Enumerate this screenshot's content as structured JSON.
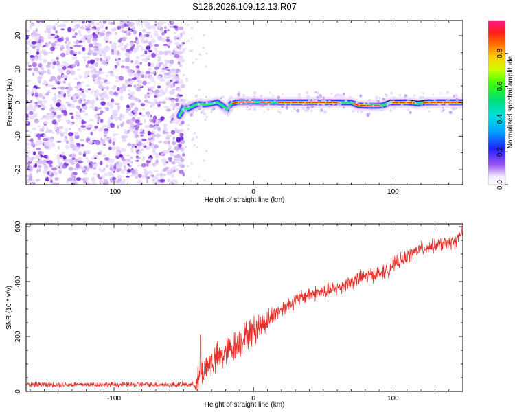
{
  "title": "S126.2026.109.12.13.R07",
  "colors": {
    "snr_line": "#e8302a",
    "scatter_purple": "#7a1fd6",
    "axis": "#000000"
  },
  "chart_data": [
    {
      "type": "heatmap",
      "name": "spectrogram",
      "xlabel": "Height of straight line (km)",
      "ylabel": "Frequency (Hz)",
      "xlim": [
        -163,
        150
      ],
      "ylim": [
        -24.5,
        24.5
      ],
      "xticks": [
        -100,
        0,
        100
      ],
      "xtick_labels": [
        "-100",
        "0",
        "100"
      ],
      "yticks": [
        -20,
        -10,
        0,
        10,
        20
      ],
      "ytick_labels": [
        "-20",
        "-10",
        "0",
        "10",
        "20"
      ],
      "colorbar": {
        "label": "Normalized spectral amplitude",
        "range": [
          0,
          1
        ],
        "ticks": [
          0.0,
          0.2,
          0.4,
          0.6,
          0.8
        ],
        "tick_labels": [
          "0.0",
          "0.2",
          "0.4",
          "0.6",
          "0.8"
        ]
      },
      "noise_region_x": [
        -163,
        -53
      ],
      "signal_start_x": -53,
      "signal_track": [
        {
          "x": -53,
          "f": -4.0
        },
        {
          "x": -50,
          "f": -1.5
        },
        {
          "x": -47,
          "f": -1.8
        },
        {
          "x": -44,
          "f": -1.2
        },
        {
          "x": -40,
          "f": -0.4
        },
        {
          "x": -35,
          "f": -0.6
        },
        {
          "x": -30,
          "f": -0.3
        },
        {
          "x": -26,
          "f": 0.1
        },
        {
          "x": -22,
          "f": -1.0
        },
        {
          "x": -19,
          "f": -2.0
        },
        {
          "x": -16,
          "f": -0.3
        },
        {
          "x": -10,
          "f": 0.2
        },
        {
          "x": 0,
          "f": 0.2
        },
        {
          "x": 20,
          "f": 0.1
        },
        {
          "x": 50,
          "f": 0.1
        },
        {
          "x": 70,
          "f": 0.0
        },
        {
          "x": 75,
          "f": -0.8
        },
        {
          "x": 85,
          "f": -1.0
        },
        {
          "x": 92,
          "f": -0.9
        },
        {
          "x": 98,
          "f": 0.0
        },
        {
          "x": 110,
          "f": 0.1
        },
        {
          "x": 118,
          "f": -0.3
        },
        {
          "x": 125,
          "f": 0.1
        },
        {
          "x": 150,
          "f": 0.1
        }
      ],
      "strong_segments": [
        [
          -15,
          0
        ],
        [
          5,
          12
        ],
        [
          18,
          60
        ],
        [
          72,
          90
        ],
        [
          100,
          115
        ],
        [
          122,
          150
        ]
      ]
    },
    {
      "type": "line",
      "name": "snr",
      "xlabel": "Height of straight line (km)",
      "ylabel": "SNR (10 * v/v)",
      "xlim": [
        -163,
        150
      ],
      "ylim": [
        0,
        610
      ],
      "xticks": [
        -100,
        0,
        100
      ],
      "xtick_labels": [
        "-100",
        "0",
        "100"
      ],
      "yticks": [
        0,
        200,
        400,
        600
      ],
      "ytick_labels": [
        "0",
        "200",
        "400",
        "600"
      ],
      "trend": [
        {
          "x": -163,
          "y": 25
        },
        {
          "x": -42,
          "y": 25
        },
        {
          "x": -40,
          "y": 30
        },
        {
          "x": -35,
          "y": 90
        },
        {
          "x": -20,
          "y": 140
        },
        {
          "x": -10,
          "y": 180
        },
        {
          "x": 0,
          "y": 220
        },
        {
          "x": 10,
          "y": 260
        },
        {
          "x": 20,
          "y": 300
        },
        {
          "x": 30,
          "y": 330
        },
        {
          "x": 40,
          "y": 355
        },
        {
          "x": 50,
          "y": 360
        },
        {
          "x": 60,
          "y": 375
        },
        {
          "x": 70,
          "y": 400
        },
        {
          "x": 80,
          "y": 420
        },
        {
          "x": 95,
          "y": 435
        },
        {
          "x": 100,
          "y": 460
        },
        {
          "x": 110,
          "y": 490
        },
        {
          "x": 120,
          "y": 520
        },
        {
          "x": 130,
          "y": 530
        },
        {
          "x": 145,
          "y": 545
        },
        {
          "x": 150,
          "y": 590
        }
      ],
      "noise_amplitude": [
        {
          "x": -163,
          "a": 12
        },
        {
          "x": -42,
          "a": 12
        },
        {
          "x": -40,
          "a": 70
        },
        {
          "x": 0,
          "a": 70
        },
        {
          "x": 20,
          "a": 35
        },
        {
          "x": 80,
          "a": 35
        },
        {
          "x": 150,
          "a": 30
        }
      ],
      "spike": {
        "x": -38,
        "y": 205
      }
    }
  ]
}
